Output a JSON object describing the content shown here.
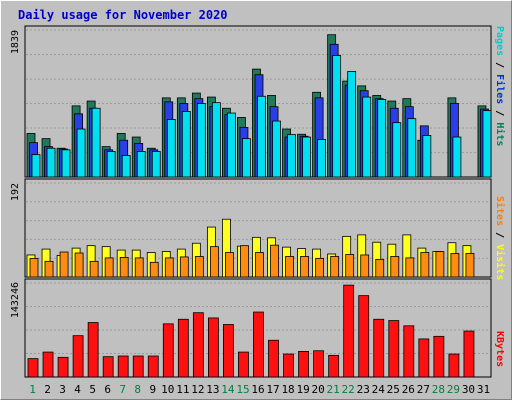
{
  "chart_data": {
    "type": "bar",
    "title": "Daily usage for November 2020",
    "x": [
      "1",
      "2",
      "3",
      "4",
      "5",
      "6",
      "7",
      "8",
      "9",
      "10",
      "11",
      "12",
      "13",
      "14",
      "15",
      "16",
      "17",
      "18",
      "19",
      "20",
      "21",
      "22",
      "23",
      "24",
      "25",
      "26",
      "27",
      "28",
      "29",
      "30",
      "31"
    ],
    "weekend_days": [
      "1",
      "7",
      "8",
      "14",
      "15",
      "21",
      "22",
      "28",
      "29"
    ],
    "panels": [
      {
        "name": "pages-files-hits",
        "max_label": "1839",
        "ylim": [
          0,
          1839
        ],
        "right_labels": [
          {
            "text": "Pages",
            "color": "#00cccc"
          },
          {
            "text": " / ",
            "color": "#000000"
          },
          {
            "text": "Files",
            "color": "#0033cc"
          },
          {
            "text": " / ",
            "color": "#000000"
          },
          {
            "text": "Hits",
            "color": "#008060"
          }
        ],
        "series": [
          {
            "name": "Hits",
            "color": "#20795a",
            "values": [
              545,
              480,
              360,
              890,
              950,
              380,
              545,
              500,
              360,
              990,
              990,
              1050,
              1000,
              860,
              745,
              1350,
              1020,
              600,
              535,
              1060,
              1780,
              1200,
              1140,
              1020,
              950,
              980,
              460,
              0,
              990,
              0,
              890
            ]
          },
          {
            "name": "Files",
            "color": "#2a3ee8",
            "values": [
              430,
              380,
              350,
              790,
              860,
              340,
              460,
              420,
              340,
              940,
              920,
              980,
              880,
              780,
              620,
              1280,
              880,
              500,
              510,
              990,
              1660,
              1150,
              1080,
              980,
              860,
              880,
              640,
              0,
              920,
              0,
              850
            ]
          },
          {
            "name": "Pages",
            "color": "#00e0f0",
            "values": [
              280,
              360,
              340,
              600,
              860,
              320,
              270,
              320,
              320,
              720,
              820,
              920,
              930,
              800,
              480,
              1010,
              700,
              530,
              500,
              470,
              1520,
              1320,
              1000,
              970,
              680,
              730,
              520,
              0,
              500,
              0,
              830
            ]
          }
        ]
      },
      {
        "name": "sites-visits",
        "max_label": "192",
        "ylim": [
          0,
          192
        ],
        "right_labels": [
          {
            "text": "Sites",
            "color": "#ff8000"
          },
          {
            "text": " / ",
            "color": "#000000"
          },
          {
            "text": "Visits",
            "color": "#ffff00"
          }
        ],
        "series": [
          {
            "name": "Visits",
            "color": "#ffff20",
            "values": [
              45,
              57,
              44,
              59,
              64,
              62,
              55,
              55,
              50,
              52,
              57,
              69,
              102,
              118,
              63,
              81,
              80,
              61,
              58,
              57,
              47,
              83,
              86,
              71,
              67,
              86,
              59,
              52,
              70,
              64,
              0
            ]
          },
          {
            "name": "Sites",
            "color": "#ff8c10",
            "values": [
              38,
              32,
              51,
              49,
              32,
              39,
              40,
              39,
              30,
              39,
              41,
              42,
              62,
              50,
              64,
              50,
              65,
              42,
              42,
              38,
              42,
              46,
              45,
              36,
              42,
              39,
              50,
              52,
              48,
              48,
              0
            ]
          }
        ]
      },
      {
        "name": "kbytes",
        "max_label": "143246",
        "ylim": [
          0,
          143246
        ],
        "right_labels": [
          {
            "text": "KBytes",
            "color": "#ff0000"
          }
        ],
        "series": [
          {
            "name": "KBytes",
            "color": "#ff1010",
            "values": [
              28000,
              38000,
              30000,
              63000,
              83000,
              31000,
              32000,
              32000,
              32000,
              81000,
              88000,
              98000,
              90000,
              80000,
              38000,
              99000,
              56000,
              35000,
              39000,
              40000,
              33000,
              140000,
              124000,
              88000,
              86000,
              78000,
              58000,
              62000,
              35000,
              70000,
              0
            ]
          }
        ]
      }
    ]
  }
}
